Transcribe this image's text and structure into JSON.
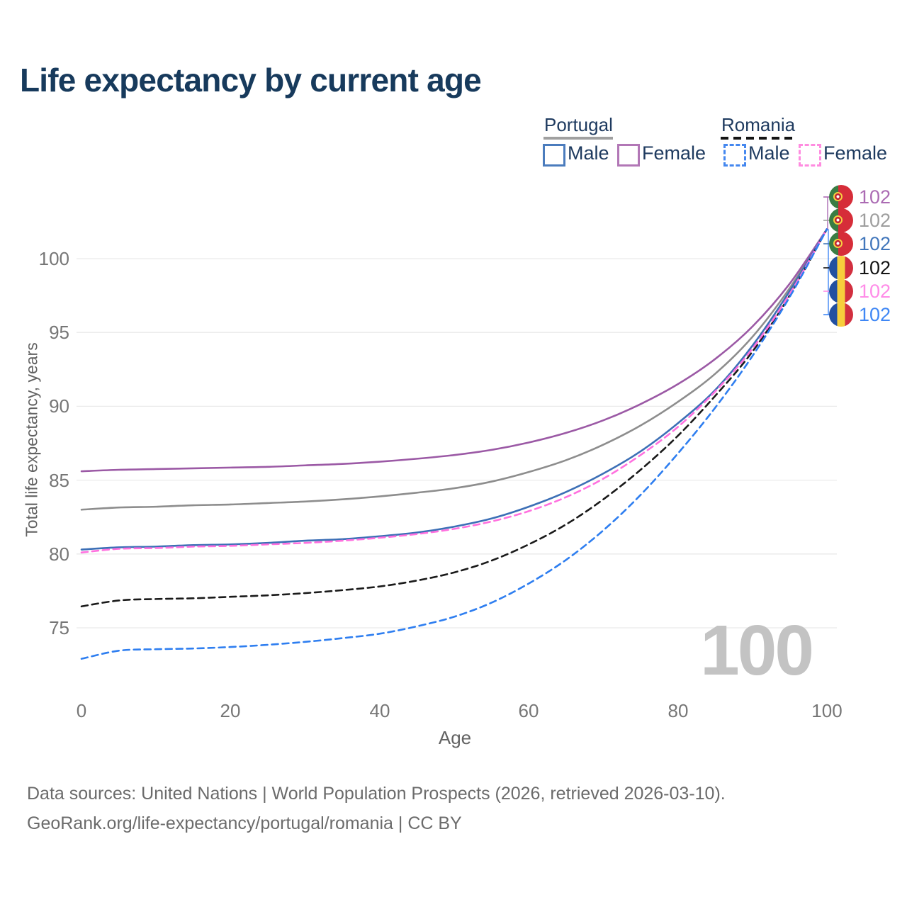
{
  "page": {
    "title": "Life expectancy by current age",
    "age_counter": "100"
  },
  "legend": {
    "groups": [
      {
        "name": "Portugal",
        "line_style": "solid",
        "underline_color": "#a0a0a0",
        "items": [
          {
            "label": "Male",
            "color": "#4b7cbd",
            "dashed": false
          },
          {
            "label": "Female",
            "color": "#b277b6",
            "dashed": false
          }
        ]
      },
      {
        "name": "Romania",
        "line_style": "dashed",
        "underline_color": "#141414",
        "items": [
          {
            "label": "Male",
            "color": "#4487ef",
            "dashed": true
          },
          {
            "label": "Female",
            "color": "#ff8ce0",
            "dashed": true
          }
        ]
      }
    ]
  },
  "end_labels": [
    {
      "flag": "portugal",
      "value": "102",
      "color": "#ab6bb3",
      "series": "Portugal Female"
    },
    {
      "flag": "portugal",
      "value": "102",
      "color": "#9e9e9e",
      "series": "Portugal Both sexes"
    },
    {
      "flag": "portugal",
      "value": "102",
      "color": "#4176bb",
      "series": "Portugal Male"
    },
    {
      "flag": "romania",
      "value": "102",
      "color": "#141414",
      "series": "Romania Both sexes"
    },
    {
      "flag": "romania",
      "value": "102",
      "color": "#ff8ce8",
      "series": "Romania Female"
    },
    {
      "flag": "romania",
      "value": "102",
      "color": "#3f87f5",
      "series": "Romania Male"
    }
  ],
  "chart_data": {
    "type": "line",
    "title": "Life expectancy by current age",
    "xlabel": "Age",
    "ylabel": "Total life expectancy, years",
    "xlim": [
      0,
      100
    ],
    "ylim": [
      72,
      103
    ],
    "xticks": [
      0,
      20,
      40,
      60,
      80,
      100
    ],
    "yticks": [
      75,
      80,
      85,
      90,
      95,
      100
    ],
    "grid": "horizontal-only",
    "legend_position": "top-right",
    "x": [
      0,
      5,
      10,
      15,
      20,
      25,
      30,
      35,
      40,
      45,
      50,
      55,
      60,
      65,
      70,
      75,
      80,
      85,
      90,
      95,
      100
    ],
    "series": [
      {
        "name": "Portugal Both sexes",
        "color": "#8d8d8d",
        "dashed": false,
        "values": [
          83.0,
          83.15,
          83.2,
          83.3,
          83.35,
          83.45,
          83.55,
          83.7,
          83.9,
          84.15,
          84.45,
          84.9,
          85.55,
          86.35,
          87.4,
          88.7,
          90.3,
          92.2,
          94.7,
          98.0,
          102
        ]
      },
      {
        "name": "Portugal Female",
        "color": "#9b59a5",
        "dashed": false,
        "values": [
          85.6,
          85.7,
          85.75,
          85.8,
          85.85,
          85.9,
          86.0,
          86.1,
          86.25,
          86.45,
          86.7,
          87.05,
          87.55,
          88.2,
          89.05,
          90.15,
          91.5,
          93.2,
          95.4,
          98.3,
          102
        ]
      },
      {
        "name": "Portugal Male",
        "color": "#3c6fb6",
        "dashed": false,
        "values": [
          80.3,
          80.45,
          80.5,
          80.6,
          80.65,
          80.75,
          80.9,
          81.0,
          81.2,
          81.45,
          81.85,
          82.4,
          83.2,
          84.2,
          85.45,
          86.95,
          88.85,
          91.1,
          94.1,
          97.8,
          102
        ]
      },
      {
        "name": "Romania Both sexes",
        "color": "#1a1a1a",
        "dashed": true,
        "values": [
          76.45,
          76.85,
          76.95,
          77.0,
          77.1,
          77.2,
          77.35,
          77.55,
          77.8,
          78.2,
          78.75,
          79.55,
          80.65,
          82.0,
          83.7,
          85.7,
          88.0,
          90.7,
          93.7,
          97.5,
          102
        ]
      },
      {
        "name": "Romania Female",
        "color": "#ff70df",
        "dashed": true,
        "values": [
          80.1,
          80.35,
          80.4,
          80.5,
          80.55,
          80.65,
          80.75,
          80.9,
          81.1,
          81.35,
          81.7,
          82.2,
          82.9,
          83.85,
          85.1,
          86.7,
          88.6,
          91.0,
          93.9,
          97.6,
          102
        ]
      },
      {
        "name": "Romania Male",
        "color": "#2e7ef0",
        "dashed": true,
        "values": [
          72.9,
          73.45,
          73.55,
          73.6,
          73.7,
          73.85,
          74.05,
          74.3,
          74.6,
          75.1,
          75.75,
          76.7,
          78.0,
          79.6,
          81.6,
          84.0,
          86.8,
          89.9,
          93.4,
          97.4,
          102
        ]
      }
    ]
  },
  "footer": {
    "line1": "Data sources: United Nations | World Population Prospects (2026, retrieved 2026-03-10).",
    "line2": "GeoRank.org/life-expectancy/portugal/romania | CC BY"
  }
}
